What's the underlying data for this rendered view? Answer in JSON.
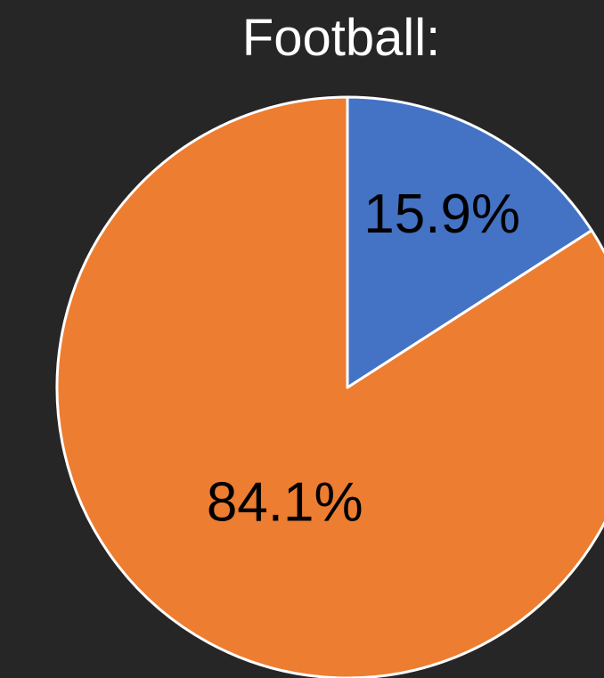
{
  "chart_data": {
    "type": "pie",
    "title": "Football:",
    "slices": [
      {
        "value": 15.9,
        "label": "15.9%",
        "color": "#4472C4"
      },
      {
        "value": 84.1,
        "label": "84.1%",
        "color": "#ED7D31"
      }
    ],
    "start_angle": "12 o'clock",
    "direction": "clockwise",
    "border_color": "#FFFFFF"
  },
  "background": "#262626"
}
